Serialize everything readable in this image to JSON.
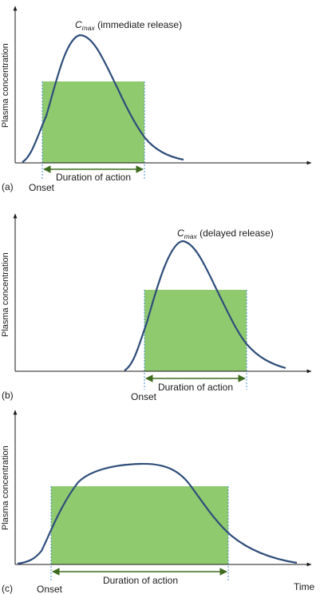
{
  "colors": {
    "curve": "#2f4d7a",
    "window_fill": "#8fca6f",
    "window_edge": "#4a8fd0",
    "arrow": "#3d6b1e",
    "axis": "#1a1a1a"
  },
  "panels": [
    {
      "id": "a",
      "panel_label": "(a)",
      "y_axis_label": "Plasma concentration",
      "cmax_label": {
        "symbol": "C",
        "subscript": "max",
        "text": " (immediate release)"
      },
      "onset_label": "Onset",
      "duration_label": "Duration of action",
      "time_label": ""
    },
    {
      "id": "b",
      "panel_label": "(b)",
      "y_axis_label": "Plasma concentration",
      "cmax_label": {
        "symbol": "C",
        "subscript": "max",
        "text": " (delayed release)"
      },
      "onset_label": "Onset",
      "duration_label": "Duration of action",
      "time_label": ""
    },
    {
      "id": "c",
      "panel_label": "(c)",
      "y_axis_label": "Plasma concentration",
      "cmax_label": null,
      "onset_label": "Onset",
      "duration_label": "Duration of action",
      "time_label": "Time"
    }
  ]
}
